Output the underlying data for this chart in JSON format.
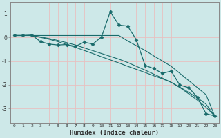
{
  "xlabel": "Humidex (Indice chaleur)",
  "bg_color": "#cde8e8",
  "grid_color": "#e8c0c0",
  "line_color": "#1a6b6b",
  "x_ticks": [
    0,
    1,
    2,
    3,
    4,
    5,
    6,
    7,
    8,
    9,
    10,
    11,
    12,
    13,
    14,
    15,
    16,
    17,
    18,
    19,
    20,
    21,
    22,
    23
  ],
  "y_ticks": [
    -3,
    -2,
    -1,
    0,
    1
  ],
  "xlim": [
    -0.5,
    23.5
  ],
  "ylim": [
    -3.6,
    1.5
  ],
  "series1_x": [
    0,
    1,
    2,
    3,
    4,
    5,
    6,
    7,
    8,
    9,
    10,
    11,
    12,
    13,
    14,
    15,
    16,
    17,
    18,
    19,
    20,
    21,
    22,
    23
  ],
  "series1_y": [
    0.08,
    0.08,
    0.1,
    -0.18,
    -0.28,
    -0.32,
    -0.3,
    -0.38,
    -0.2,
    -0.28,
    0.02,
    1.08,
    0.52,
    0.48,
    -0.1,
    -1.18,
    -1.32,
    -1.52,
    -1.42,
    -2.02,
    -2.12,
    -2.52,
    -3.22,
    -3.32
  ],
  "series2_x": [
    0,
    1,
    2,
    3,
    4,
    5,
    6,
    7,
    8,
    9,
    10,
    11,
    12,
    13,
    14,
    15,
    16,
    17,
    18,
    19,
    20,
    21,
    22,
    23
  ],
  "series2_y": [
    0.08,
    0.08,
    0.08,
    0.08,
    0.08,
    0.08,
    0.08,
    0.08,
    0.08,
    0.08,
    0.08,
    0.08,
    0.08,
    -0.15,
    -0.35,
    -0.55,
    -0.78,
    -1.0,
    -1.22,
    -1.52,
    -1.82,
    -2.12,
    -2.42,
    -3.32
  ],
  "series3_x": [
    0,
    1,
    2,
    3,
    4,
    5,
    6,
    7,
    8,
    9,
    10,
    11,
    12,
    13,
    14,
    15,
    16,
    17,
    18,
    19,
    20,
    21,
    22,
    23
  ],
  "series3_y": [
    0.08,
    0.08,
    0.08,
    0.0,
    -0.08,
    -0.18,
    -0.3,
    -0.42,
    -0.55,
    -0.68,
    -0.82,
    -0.95,
    -1.08,
    -1.22,
    -1.35,
    -1.48,
    -1.62,
    -1.75,
    -1.9,
    -2.1,
    -2.32,
    -2.55,
    -2.82,
    -3.32
  ],
  "series4_x": [
    0,
    1,
    2,
    3,
    4,
    5,
    6,
    7,
    8,
    9,
    10,
    11,
    12,
    13,
    14,
    15,
    16,
    17,
    18,
    19,
    20,
    21,
    22,
    23
  ],
  "series4_y": [
    0.08,
    0.08,
    0.08,
    0.02,
    -0.05,
    -0.13,
    -0.22,
    -0.32,
    -0.44,
    -0.56,
    -0.68,
    -0.8,
    -0.92,
    -1.06,
    -1.22,
    -1.38,
    -1.55,
    -1.72,
    -1.9,
    -2.12,
    -2.38,
    -2.65,
    -2.95,
    -3.32
  ]
}
